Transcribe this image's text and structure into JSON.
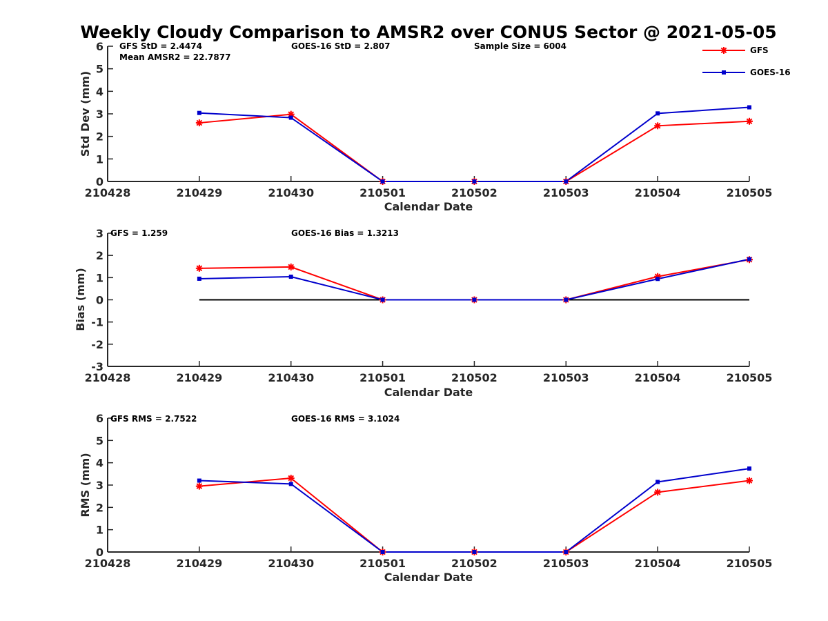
{
  "chart_data": {
    "title": "Weekly Cloudy Comparison to AMSR2 over CONUS Sector @ 2021-05-05",
    "legend": {
      "placement": "top-right",
      "entries": [
        {
          "label": "GFS",
          "color": "#ff0000",
          "marker": "asterisk"
        },
        {
          "label": "GOES-16",
          "color": "#0000cc",
          "marker": "square"
        }
      ]
    },
    "panels": [
      {
        "type": "line",
        "xlabel": "Calendar Date",
        "ylabel": "Std Dev (mm)",
        "x_ticks": [
          "210428",
          "210429",
          "210430",
          "210501",
          "210502",
          "210503",
          "210504",
          "210505"
        ],
        "ylim": [
          0,
          6
        ],
        "y_ticks": [
          "0",
          "1",
          "2",
          "3",
          "4",
          "5",
          "6"
        ],
        "zero_line": false,
        "annotations": [
          {
            "text": "GFS StD = 2.4474",
            "anchor": "left"
          },
          {
            "text": "GOES-16 StD = 2.807",
            "anchor": "mid"
          },
          {
            "text": "Sample Size = 6004",
            "anchor": "right"
          },
          {
            "text": "Mean AMSR2 = 22.7877",
            "anchor": "left-second"
          }
        ],
        "series": [
          {
            "name": "GFS",
            "color": "#ff0000",
            "marker": "asterisk",
            "x": [
              "210429",
              "210430",
              "210501",
              "210502",
              "210503",
              "210504",
              "210505"
            ],
            "values": [
              2.6,
              2.98,
              0.0,
              0.0,
              0.0,
              2.47,
              2.67
            ]
          },
          {
            "name": "GOES-16",
            "color": "#0000cc",
            "marker": "square",
            "x": [
              "210429",
              "210430",
              "210501",
              "210502",
              "210503",
              "210504",
              "210505"
            ],
            "values": [
              3.04,
              2.83,
              0.0,
              0.0,
              0.0,
              3.02,
              3.29
            ]
          }
        ]
      },
      {
        "type": "line",
        "xlabel": "Calendar Date",
        "ylabel": "Bias (mm)",
        "x_ticks": [
          "210428",
          "210429",
          "210430",
          "210501",
          "210502",
          "210503",
          "210504",
          "210505"
        ],
        "ylim": [
          -3,
          3
        ],
        "y_ticks": [
          "-3",
          "-2",
          "-1",
          "0",
          "1",
          "2",
          "3"
        ],
        "zero_line": true,
        "annotations": [
          {
            "text": "GFS = 1.259",
            "anchor": "left"
          },
          {
            "text": "GOES-16 Bias  = 1.3213",
            "anchor": "mid"
          }
        ],
        "series": [
          {
            "name": "GFS",
            "color": "#ff0000",
            "marker": "asterisk",
            "x": [
              "210429",
              "210430",
              "210501",
              "210502",
              "210503",
              "210504",
              "210505"
            ],
            "values": [
              1.42,
              1.48,
              0.0,
              0.0,
              0.0,
              1.05,
              1.81
            ]
          },
          {
            "name": "GOES-16",
            "color": "#0000cc",
            "marker": "square",
            "x": [
              "210429",
              "210430",
              "210501",
              "210502",
              "210503",
              "210504",
              "210505"
            ],
            "values": [
              0.95,
              1.04,
              0.0,
              0.0,
              0.0,
              0.94,
              1.83
            ]
          }
        ]
      },
      {
        "type": "line",
        "xlabel": "Calendar Date",
        "ylabel": "RMS (mm)",
        "x_ticks": [
          "210428",
          "210429",
          "210430",
          "210501",
          "210502",
          "210503",
          "210504",
          "210505"
        ],
        "ylim": [
          0,
          6
        ],
        "y_ticks": [
          "0",
          "1",
          "2",
          "3",
          "4",
          "5",
          "6"
        ],
        "zero_line": false,
        "annotations": [
          {
            "text": "GFS RMS = 2.7522",
            "anchor": "left"
          },
          {
            "text": "GOES-16 RMS = 3.1024",
            "anchor": "mid"
          }
        ],
        "series": [
          {
            "name": "GFS",
            "color": "#ff0000",
            "marker": "asterisk",
            "x": [
              "210429",
              "210430",
              "210501",
              "210502",
              "210503",
              "210504",
              "210505"
            ],
            "values": [
              2.95,
              3.31,
              0.0,
              0.0,
              0.0,
              2.68,
              3.2
            ]
          },
          {
            "name": "GOES-16",
            "color": "#0000cc",
            "marker": "square",
            "x": [
              "210429",
              "210430",
              "210501",
              "210502",
              "210503",
              "210504",
              "210505"
            ],
            "values": [
              3.2,
              3.05,
              0.0,
              0.0,
              0.0,
              3.14,
              3.74
            ]
          }
        ]
      }
    ]
  }
}
